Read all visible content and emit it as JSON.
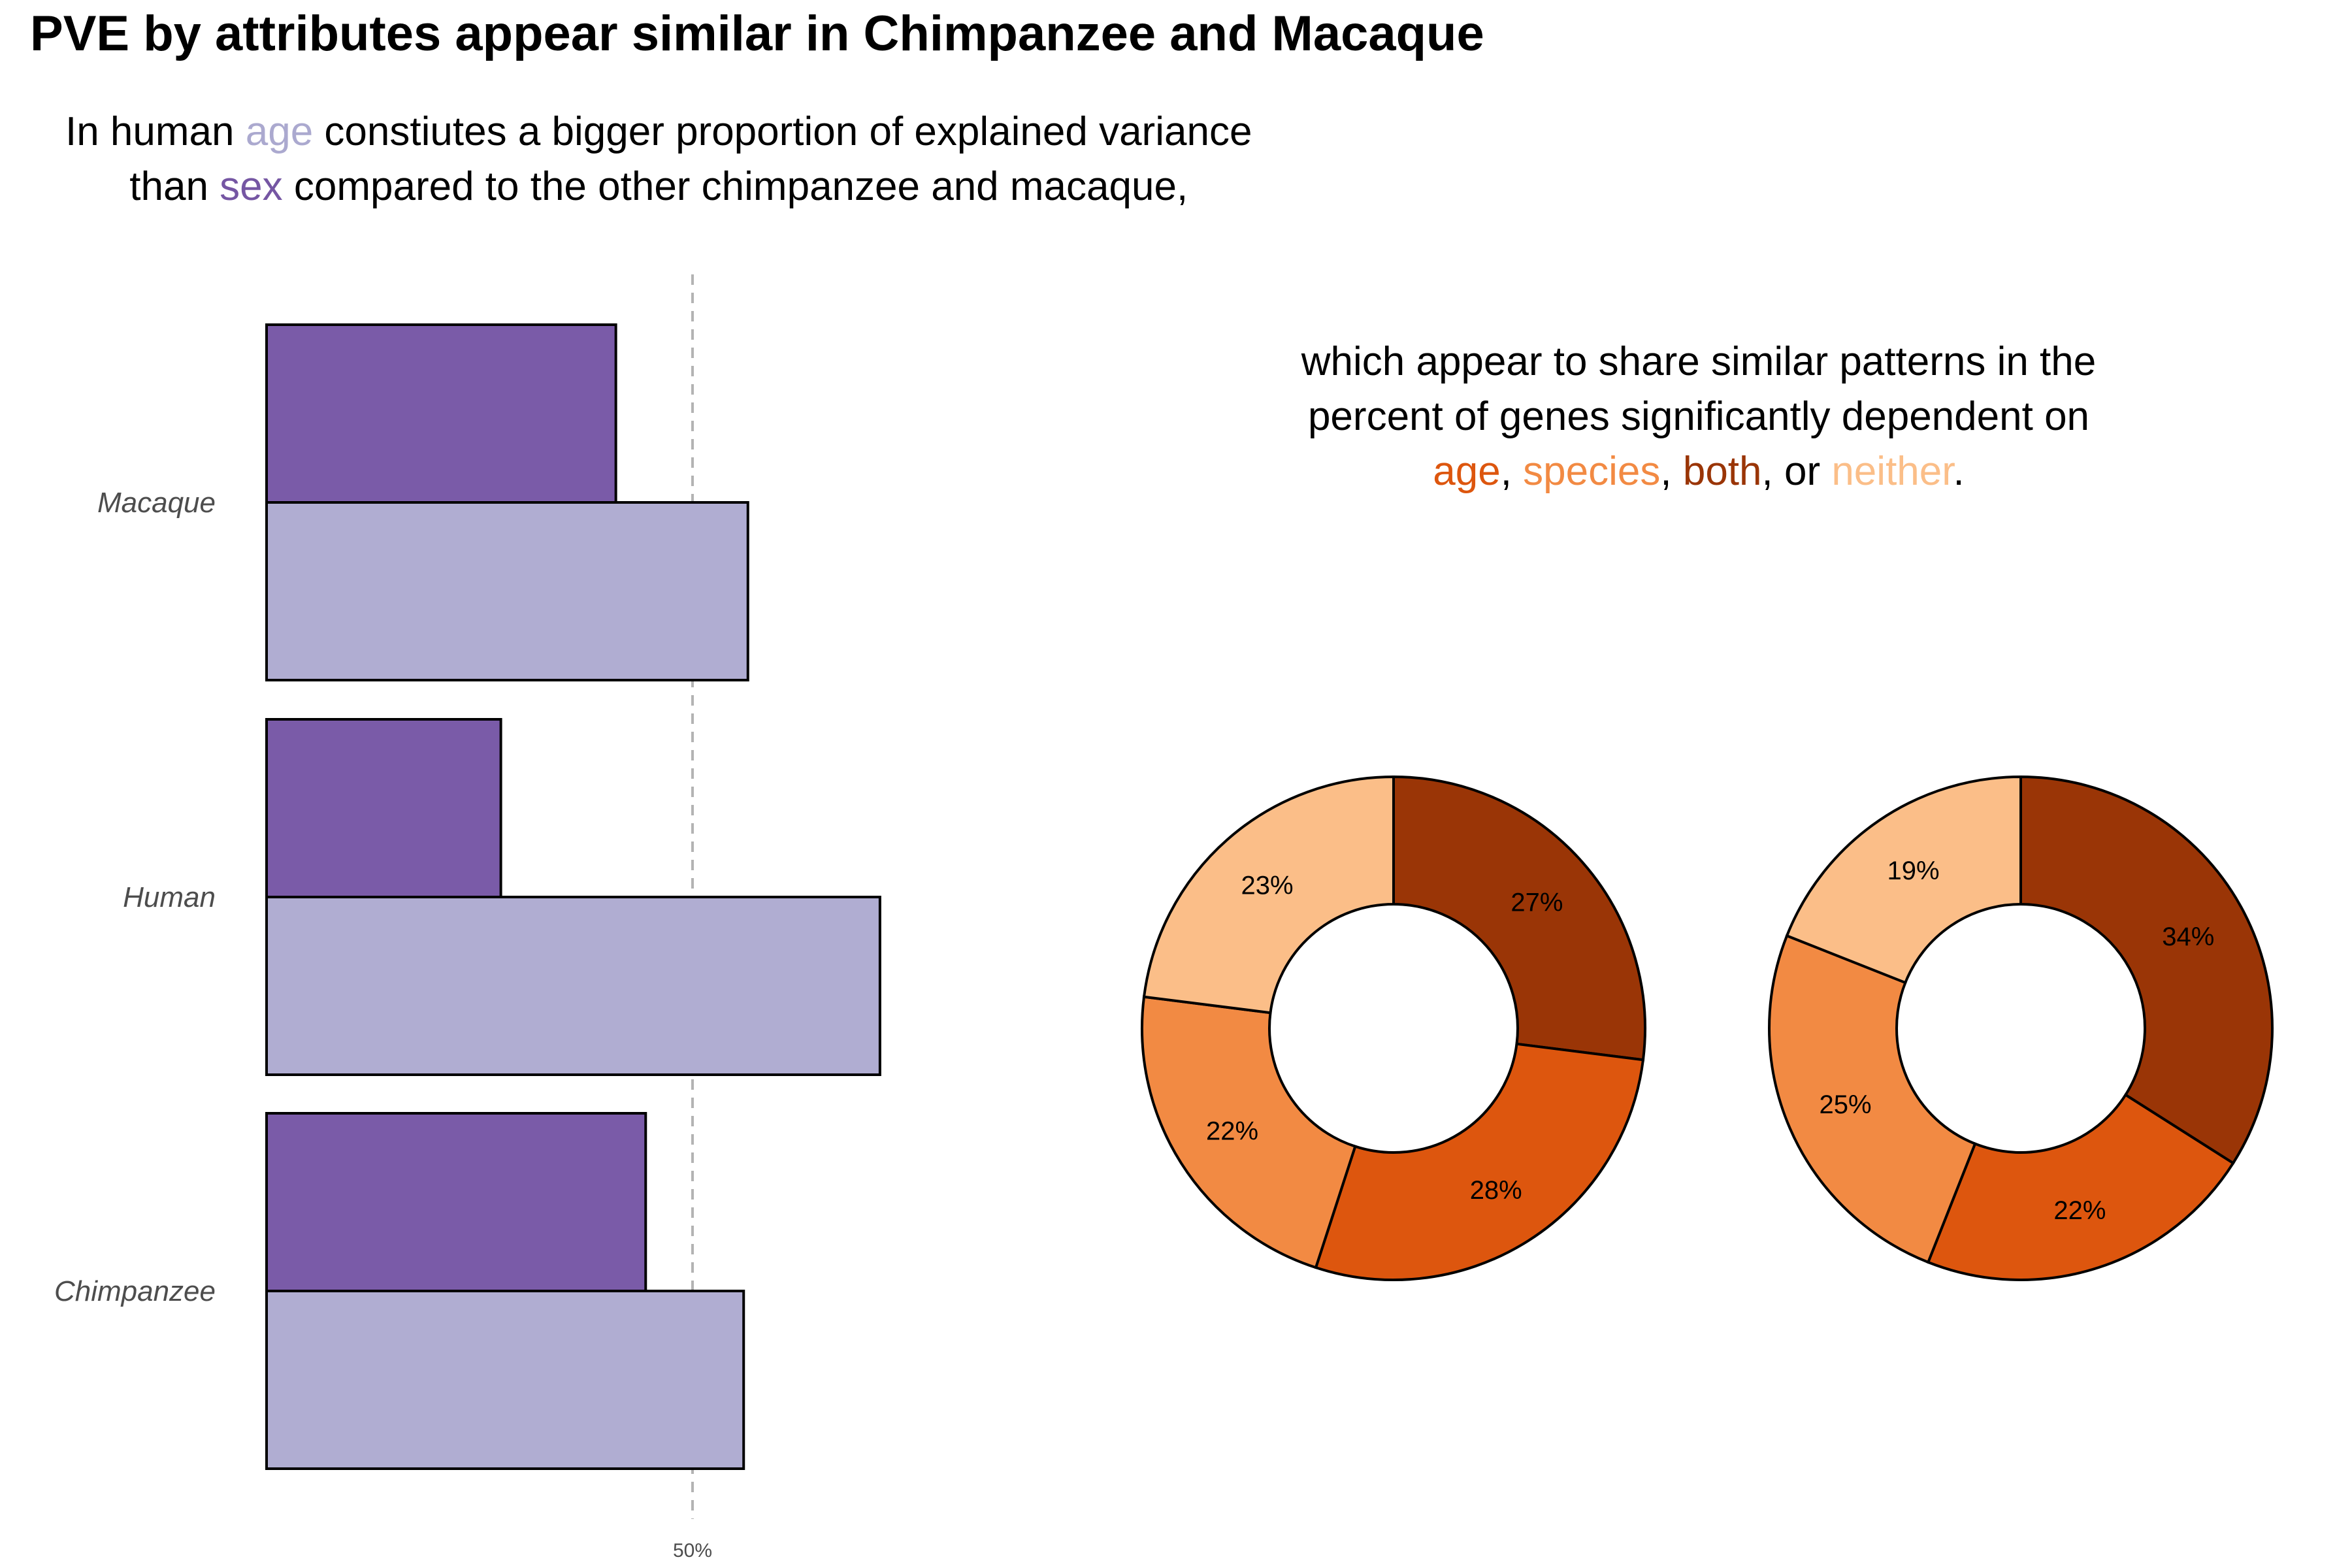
{
  "title": "PVE by attributes appear similar in Chimpanzee and Macaque",
  "subtitle": {
    "line1_pre": "In human ",
    "line1_age": "age",
    "line1_post": " constiutes a bigger proportion of explained variance",
    "line2_pre": "than ",
    "line2_sex": "sex",
    "line2_post": " compared to the other chimpanzee and macaque,"
  },
  "pie_caption": {
    "line1": "which appear to share similar patterns in the",
    "line2": "percent of genes significantly dependent on",
    "age": "age",
    "sep1": ", ",
    "species": "species",
    "sep2": ", ",
    "both": "both",
    "sep3": ", or ",
    "neither": "neither",
    "end": "."
  },
  "colors": {
    "sex": "#7A5BA8",
    "age": "#B0ADD2",
    "age_text": "#ABA9CF",
    "sex_text": "#7556A3",
    "pie_age": "#DD560E",
    "pie_species": "#F28A43",
    "pie_both": "#9A3506",
    "pie_neither": "#FBBE88",
    "refline": "#b3b3b3"
  },
  "chart_data": [
    {
      "type": "bar",
      "orientation": "horizontal",
      "categories": [
        "Macaque",
        "Human",
        "Chimpanzee"
      ],
      "series": [
        {
          "name": "sex",
          "values": [
            41,
            27.5,
            44.5
          ]
        },
        {
          "name": "age",
          "values": [
            56.5,
            72,
            56
          ]
        }
      ],
      "reference_line": {
        "value": 50,
        "label": "50%"
      },
      "xlim": [
        0,
        80
      ],
      "grid": false
    },
    {
      "type": "pie",
      "donut": true,
      "slices": [
        {
          "name": "both",
          "value": 27,
          "label": "27%"
        },
        {
          "name": "age",
          "value": 28,
          "label": "28%"
        },
        {
          "name": "species",
          "value": 22,
          "label": "22%"
        },
        {
          "name": "neither",
          "value": 23,
          "label": "23%"
        }
      ]
    },
    {
      "type": "pie",
      "donut": true,
      "slices": [
        {
          "name": "both",
          "value": 34,
          "label": "34%"
        },
        {
          "name": "age",
          "value": 22,
          "label": "22%"
        },
        {
          "name": "species",
          "value": 25,
          "label": "25%"
        },
        {
          "name": "neither",
          "value": 19,
          "label": "19%"
        }
      ]
    }
  ]
}
